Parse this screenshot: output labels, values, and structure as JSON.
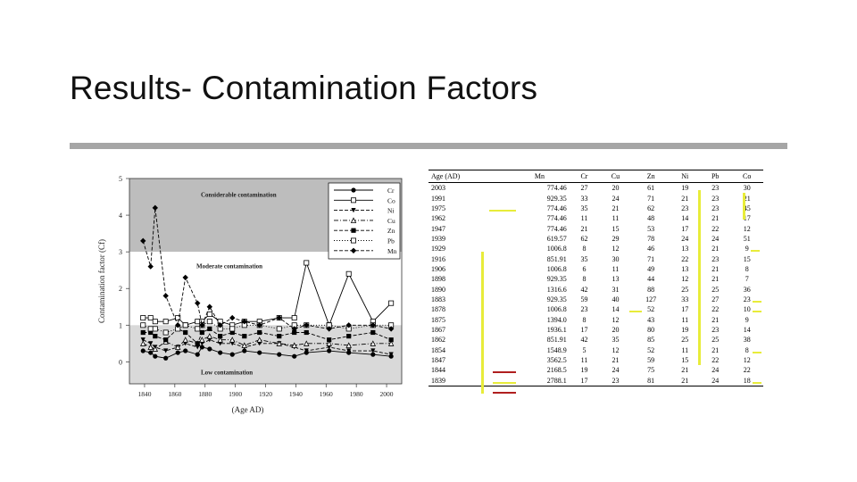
{
  "slide": {
    "title": "Results- Contamination Factors"
  },
  "chart_data": {
    "type": "line",
    "ylabel": "Contamination factor (Cf)",
    "xlabel": "(Age AD)",
    "xlim": [
      1830,
      2010
    ],
    "ylim": [
      -0.6,
      5
    ],
    "yticks": [
      0,
      1,
      2,
      3,
      4,
      5
    ],
    "xticks": [
      1840,
      1860,
      1880,
      1900,
      1920,
      1940,
      1960,
      1980,
      2000
    ],
    "zones": [
      {
        "label": "Considerable contamination",
        "from": 3,
        "to": 5,
        "color": "#bdbdbd"
      },
      {
        "label": "Moderate contamination",
        "from": 1,
        "to": 3,
        "color": "#ffffff"
      },
      {
        "label": "Low contamination",
        "from": -0.6,
        "to": 1,
        "color": "#d9d9d9"
      }
    ],
    "legend_position": "top-right",
    "x": [
      1839,
      1844,
      1847,
      1854,
      1862,
      1867,
      1875,
      1878,
      1883,
      1890,
      1898,
      1906,
      1916,
      1929,
      1939,
      1947,
      1962,
      1975,
      1991,
      2003
    ],
    "series": [
      {
        "name": "Cr",
        "marker": "circle-filled",
        "dash": "solid",
        "values": [
          0.3,
          0.25,
          0.15,
          0.1,
          0.25,
          0.3,
          0.2,
          0.4,
          0.35,
          0.25,
          0.2,
          0.3,
          0.25,
          0.2,
          0.15,
          0.25,
          0.3,
          0.25,
          0.2,
          0.15
        ]
      },
      {
        "name": "Co",
        "marker": "square-open",
        "dash": "solid",
        "values": [
          1.2,
          1.2,
          1.1,
          1.1,
          1.2,
          1.0,
          1.1,
          1.1,
          1.3,
          1.1,
          1.0,
          1.1,
          1.1,
          1.2,
          1.2,
          2.7,
          1.0,
          2.4,
          1.1,
          1.6
        ]
      },
      {
        "name": "Ni",
        "marker": "triangle-down-filled",
        "dash": "dashed",
        "values": [
          0.6,
          0.5,
          0.4,
          0.3,
          0.4,
          0.5,
          0.4,
          0.5,
          0.6,
          0.5,
          0.5,
          0.4,
          0.5,
          0.5,
          0.4,
          0.3,
          0.4,
          0.3,
          0.3,
          0.2
        ]
      },
      {
        "name": "Cu",
        "marker": "triangle-up-open",
        "dash": "dashdot",
        "values": [
          0.5,
          0.4,
          0.35,
          0.55,
          0.4,
          0.6,
          0.5,
          0.6,
          0.7,
          0.6,
          0.6,
          0.45,
          0.6,
          0.5,
          0.45,
          0.5,
          0.5,
          0.45,
          0.5,
          0.5
        ]
      },
      {
        "name": "Zn",
        "marker": "square-filled",
        "dash": "dashed",
        "values": [
          0.8,
          0.8,
          0.7,
          0.6,
          0.9,
          0.8,
          0.5,
          0.8,
          0.9,
          0.7,
          0.8,
          0.7,
          0.8,
          0.7,
          0.8,
          0.8,
          0.6,
          0.7,
          0.8,
          0.6
        ]
      },
      {
        "name": "Pb",
        "marker": "square-open",
        "dash": "dotted",
        "values": [
          1.0,
          0.9,
          0.9,
          0.8,
          0.9,
          1.0,
          0.9,
          1.0,
          1.1,
          0.9,
          0.9,
          1.0,
          1.0,
          0.9,
          1.0,
          1.0,
          1.0,
          0.9,
          1.0,
          1.0
        ]
      },
      {
        "name": "Mn",
        "marker": "diamond-filled",
        "dash": "dashed",
        "values": [
          3.3,
          2.6,
          4.2,
          1.8,
          1.0,
          2.3,
          1.6,
          1.0,
          1.5,
          1.0,
          1.2,
          1.1,
          1.0,
          1.2,
          0.9,
          1.0,
          0.9,
          1.0,
          1.0,
          0.9
        ]
      }
    ]
  },
  "table": {
    "headers": [
      "Age (AD)",
      "Mn",
      "Cr",
      "Cu",
      "Zn",
      "Ni",
      "Pb",
      "Co"
    ],
    "rows": [
      [
        "2003",
        "774.46",
        "27",
        "20",
        "61",
        "19",
        "23",
        "30"
      ],
      [
        "1991",
        "929.35",
        "33",
        "24",
        "71",
        "21",
        "23",
        "21"
      ],
      [
        "1975",
        "774.46",
        "35",
        "21",
        "62",
        "23",
        "23",
        "45"
      ],
      [
        "1962",
        "774.46",
        "11",
        "11",
        "48",
        "14",
        "21",
        "17"
      ],
      [
        "1947",
        "774.46",
        "21",
        "15",
        "53",
        "17",
        "22",
        "12"
      ],
      [
        "1939",
        "619.57",
        "62",
        "29",
        "78",
        "24",
        "24",
        "51"
      ],
      [
        "1929",
        "1006.8",
        "8",
        "12",
        "46",
        "13",
        "21",
        "9"
      ],
      [
        "1916",
        "851.91",
        "35",
        "30",
        "71",
        "22",
        "23",
        "15"
      ],
      [
        "1906",
        "1006.8",
        "6",
        "11",
        "49",
        "13",
        "21",
        "8"
      ],
      [
        "1898",
        "929.35",
        "8",
        "13",
        "44",
        "12",
        "21",
        "7"
      ],
      [
        "1890",
        "1316.6",
        "42",
        "31",
        "88",
        "25",
        "25",
        "36"
      ],
      [
        "1883",
        "929.35",
        "59",
        "40",
        "127",
        "33",
        "27",
        "23"
      ],
      [
        "1878",
        "1006.8",
        "23",
        "14",
        "52",
        "17",
        "22",
        "10"
      ],
      [
        "1875",
        "1394.0",
        "8",
        "12",
        "43",
        "11",
        "21",
        "9"
      ],
      [
        "1867",
        "1936.1",
        "17",
        "20",
        "80",
        "19",
        "23",
        "14"
      ],
      [
        "1862",
        "851.91",
        "42",
        "35",
        "85",
        "25",
        "25",
        "38"
      ],
      [
        "1854",
        "1548.9",
        "5",
        "12",
        "52",
        "11",
        "21",
        "8"
      ],
      [
        "1847",
        "3562.5",
        "11",
        "21",
        "59",
        "15",
        "22",
        "12"
      ],
      [
        "1844",
        "2168.5",
        "19",
        "24",
        "75",
        "21",
        "24",
        "22"
      ],
      [
        "1839",
        "2788.1",
        "17",
        "23",
        "81",
        "21",
        "24",
        "18"
      ]
    ],
    "highlight_colors": {
      "yellow": "#e8ec3a",
      "red": "#b01f1f"
    }
  }
}
